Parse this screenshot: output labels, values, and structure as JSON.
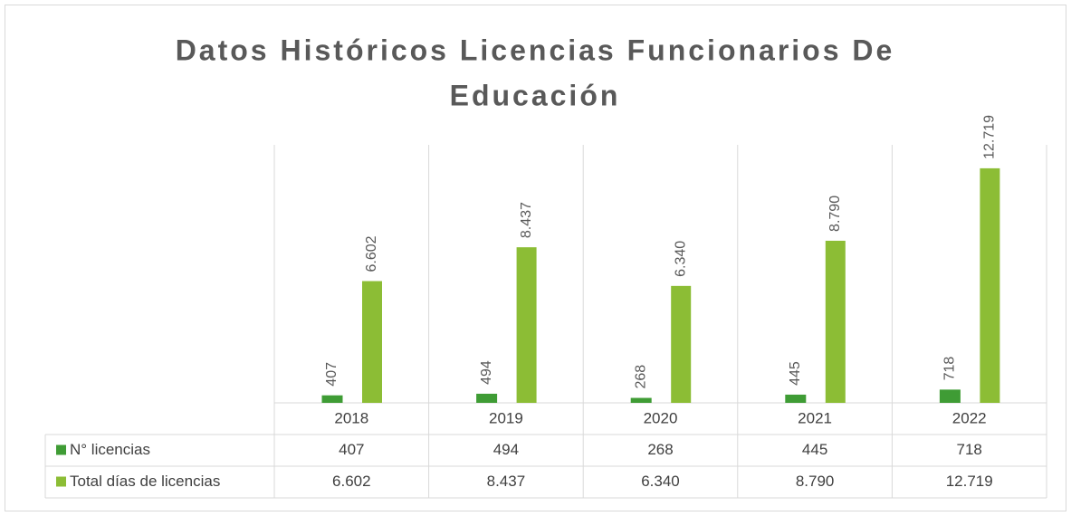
{
  "chart_data": {
    "type": "bar",
    "title": "Datos Históricos Licencias Funcionarios De Educación",
    "title_lines": [
      "Datos Históricos Licencias Funcionarios De",
      "Educación"
    ],
    "categories": [
      "2018",
      "2019",
      "2020",
      "2021",
      "2022"
    ],
    "series": [
      {
        "name": "N° licencias",
        "color": "#3f9c35",
        "values": [
          407,
          494,
          268,
          445,
          718
        ]
      },
      {
        "name": "Total  días de licencias",
        "color": "#8cbd35",
        "values": [
          6602,
          8437,
          6340,
          8790,
          12719
        ],
        "value_labels": [
          "6.602",
          "8.437",
          "6.340",
          "8.790",
          "12.719"
        ]
      }
    ]
  }
}
